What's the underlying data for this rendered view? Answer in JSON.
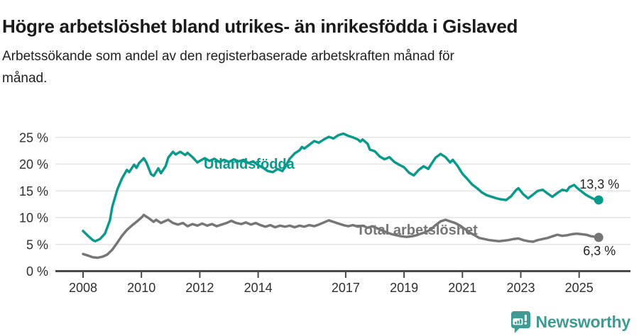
{
  "header": {
    "title": "Högre arbetslöshet bland utrikes- än inrikesfödda i Gislaved",
    "subtitle_line1": "Arbetssökande som andel av den registerbaserade arbetskraften månad för",
    "subtitle_line2": "månad."
  },
  "footer": {
    "brand": "Newsworthy",
    "logo_icon": "bar-chart-speech-bubble-icon"
  },
  "colors": {
    "series_utlandsfodda": "#0a9a8c",
    "series_total": "#767676",
    "grid": "#e4e4e4",
    "axis": "#4a4a4a",
    "title_text": "#1a1a1a",
    "tick_text": "#2e2e2e",
    "value_label_text": "#222222",
    "brand_teal": "#3e9a93"
  },
  "chart_data": {
    "type": "line",
    "title": "Högre arbetslöshet bland utrikes- än inrikesfödda i Gislaved",
    "subtitle": "Arbetssökande som andel av den registerbaserade arbetskraften månad för månad.",
    "grid": "horizontal-only",
    "legend_position": "inline-labels-on-lines",
    "x_axis": {
      "range": [
        2007.1,
        2026.8
      ],
      "ticks": [
        {
          "v": 2008,
          "label": "2008"
        },
        {
          "v": 2010,
          "label": "2010"
        },
        {
          "v": 2012,
          "label": "2012"
        },
        {
          "v": 2014,
          "label": "2014"
        },
        {
          "v": 2017,
          "label": "2017"
        },
        {
          "v": 2019,
          "label": "2019"
        },
        {
          "v": 2021,
          "label": "2021"
        },
        {
          "v": 2023,
          "label": "2023"
        },
        {
          "v": 2025,
          "label": "2025"
        }
      ]
    },
    "y_axis": {
      "unit": "%",
      "range": [
        0,
        27.5
      ],
      "ticks": [
        {
          "v": 0,
          "label": "0 %"
        },
        {
          "v": 5,
          "label": "5 %"
        },
        {
          "v": 10,
          "label": "10 %"
        },
        {
          "v": 15,
          "label": "15 %"
        },
        {
          "v": 20,
          "label": "20 %"
        },
        {
          "v": 25,
          "label": "25 %"
        }
      ]
    },
    "series": [
      {
        "name": "Utlandsfödda",
        "color": "#0a9a8c",
        "end_label": "13,3 %",
        "last_value": 13.3,
        "points": [
          [
            2008.0,
            7.5
          ],
          [
            2008.17,
            6.6
          ],
          [
            2008.33,
            5.8
          ],
          [
            2008.42,
            5.6
          ],
          [
            2008.58,
            6.0
          ],
          [
            2008.75,
            7.0
          ],
          [
            2008.92,
            9.5
          ],
          [
            2009.0,
            12.0
          ],
          [
            2009.17,
            15.2
          ],
          [
            2009.33,
            17.3
          ],
          [
            2009.5,
            18.9
          ],
          [
            2009.58,
            18.5
          ],
          [
            2009.75,
            19.9
          ],
          [
            2009.83,
            19.3
          ],
          [
            2009.92,
            20.2
          ],
          [
            2010.08,
            21.1
          ],
          [
            2010.17,
            20.3
          ],
          [
            2010.33,
            18.1
          ],
          [
            2010.42,
            17.8
          ],
          [
            2010.58,
            19.2
          ],
          [
            2010.67,
            18.3
          ],
          [
            2010.83,
            19.6
          ],
          [
            2010.92,
            21.2
          ],
          [
            2011.08,
            22.3
          ],
          [
            2011.17,
            21.8
          ],
          [
            2011.33,
            22.3
          ],
          [
            2011.5,
            21.7
          ],
          [
            2011.58,
            22.1
          ],
          [
            2011.75,
            21.3
          ],
          [
            2011.92,
            20.3
          ],
          [
            2012.0,
            20.6
          ],
          [
            2012.17,
            21.1
          ],
          [
            2012.33,
            20.6
          ],
          [
            2012.5,
            21.0
          ],
          [
            2012.67,
            20.4
          ],
          [
            2012.83,
            20.8
          ],
          [
            2013.0,
            20.4
          ],
          [
            2013.17,
            20.9
          ],
          [
            2013.33,
            20.5
          ],
          [
            2013.5,
            20.8
          ],
          [
            2013.67,
            20.2
          ],
          [
            2013.83,
            20.5
          ],
          [
            2014.0,
            19.8
          ],
          [
            2014.17,
            19.3
          ],
          [
            2014.33,
            18.7
          ],
          [
            2014.5,
            18.5
          ],
          [
            2014.67,
            19.1
          ],
          [
            2014.83,
            18.7
          ],
          [
            2014.92,
            19.4
          ],
          [
            2015.08,
            21.0
          ],
          [
            2015.25,
            22.0
          ],
          [
            2015.42,
            22.6
          ],
          [
            2015.5,
            23.2
          ],
          [
            2015.58,
            22.9
          ],
          [
            2015.75,
            23.6
          ],
          [
            2015.92,
            24.3
          ],
          [
            2016.08,
            24.0
          ],
          [
            2016.25,
            24.6
          ],
          [
            2016.42,
            25.1
          ],
          [
            2016.58,
            24.8
          ],
          [
            2016.75,
            25.4
          ],
          [
            2016.92,
            25.7
          ],
          [
            2017.08,
            25.3
          ],
          [
            2017.25,
            25.0
          ],
          [
            2017.42,
            24.6
          ],
          [
            2017.5,
            24.2
          ],
          [
            2017.58,
            24.6
          ],
          [
            2017.75,
            23.8
          ],
          [
            2017.83,
            22.7
          ],
          [
            2018.0,
            22.4
          ],
          [
            2018.17,
            21.4
          ],
          [
            2018.33,
            20.9
          ],
          [
            2018.5,
            21.3
          ],
          [
            2018.67,
            20.4
          ],
          [
            2018.83,
            19.9
          ],
          [
            2019.0,
            19.4
          ],
          [
            2019.17,
            18.4
          ],
          [
            2019.33,
            17.9
          ],
          [
            2019.5,
            18.9
          ],
          [
            2019.67,
            19.6
          ],
          [
            2019.83,
            19.1
          ],
          [
            2019.92,
            19.9
          ],
          [
            2020.08,
            21.2
          ],
          [
            2020.25,
            21.9
          ],
          [
            2020.42,
            21.3
          ],
          [
            2020.58,
            20.3
          ],
          [
            2020.67,
            20.8
          ],
          [
            2020.83,
            19.7
          ],
          [
            2021.0,
            18.2
          ],
          [
            2021.17,
            17.2
          ],
          [
            2021.33,
            16.2
          ],
          [
            2021.5,
            15.5
          ],
          [
            2021.67,
            14.7
          ],
          [
            2021.83,
            14.2
          ],
          [
            2022.0,
            13.9
          ],
          [
            2022.17,
            13.6
          ],
          [
            2022.33,
            13.4
          ],
          [
            2022.5,
            13.3
          ],
          [
            2022.67,
            14.0
          ],
          [
            2022.83,
            15.1
          ],
          [
            2022.92,
            15.5
          ],
          [
            2023.08,
            14.4
          ],
          [
            2023.25,
            13.6
          ],
          [
            2023.42,
            14.3
          ],
          [
            2023.58,
            15.0
          ],
          [
            2023.75,
            15.2
          ],
          [
            2023.92,
            14.5
          ],
          [
            2024.08,
            13.9
          ],
          [
            2024.25,
            14.6
          ],
          [
            2024.42,
            15.2
          ],
          [
            2024.58,
            15.0
          ],
          [
            2024.67,
            15.7
          ],
          [
            2024.83,
            16.1
          ],
          [
            2024.92,
            15.6
          ],
          [
            2025.08,
            14.9
          ],
          [
            2025.25,
            14.2
          ],
          [
            2025.42,
            13.7
          ],
          [
            2025.58,
            13.3
          ],
          [
            2025.67,
            13.3
          ]
        ]
      },
      {
        "name": "Total arbetslöshet",
        "color": "#767676",
        "end_label": "6,3 %",
        "last_value": 6.3,
        "points": [
          [
            2008.0,
            3.2
          ],
          [
            2008.17,
            2.9
          ],
          [
            2008.33,
            2.6
          ],
          [
            2008.5,
            2.5
          ],
          [
            2008.67,
            2.7
          ],
          [
            2008.83,
            3.1
          ],
          [
            2009.0,
            4.0
          ],
          [
            2009.17,
            5.3
          ],
          [
            2009.33,
            6.6
          ],
          [
            2009.5,
            7.7
          ],
          [
            2009.67,
            8.5
          ],
          [
            2009.83,
            9.2
          ],
          [
            2010.0,
            10.0
          ],
          [
            2010.08,
            10.5
          ],
          [
            2010.25,
            9.9
          ],
          [
            2010.42,
            9.2
          ],
          [
            2010.5,
            9.6
          ],
          [
            2010.67,
            9.0
          ],
          [
            2010.83,
            9.4
          ],
          [
            2010.92,
            9.6
          ],
          [
            2011.08,
            9.0
          ],
          [
            2011.25,
            8.7
          ],
          [
            2011.42,
            9.0
          ],
          [
            2011.58,
            8.4
          ],
          [
            2011.75,
            8.8
          ],
          [
            2011.92,
            8.5
          ],
          [
            2012.08,
            8.9
          ],
          [
            2012.25,
            8.5
          ],
          [
            2012.42,
            8.8
          ],
          [
            2012.58,
            8.4
          ],
          [
            2012.75,
            8.7
          ],
          [
            2012.92,
            9.0
          ],
          [
            2013.08,
            9.4
          ],
          [
            2013.25,
            9.0
          ],
          [
            2013.42,
            8.8
          ],
          [
            2013.58,
            9.1
          ],
          [
            2013.75,
            8.7
          ],
          [
            2013.92,
            9.0
          ],
          [
            2014.08,
            8.6
          ],
          [
            2014.25,
            8.3
          ],
          [
            2014.42,
            8.6
          ],
          [
            2014.58,
            8.2
          ],
          [
            2014.75,
            8.5
          ],
          [
            2014.92,
            8.3
          ],
          [
            2015.08,
            8.5
          ],
          [
            2015.25,
            8.2
          ],
          [
            2015.42,
            8.5
          ],
          [
            2015.58,
            8.3
          ],
          [
            2015.75,
            8.6
          ],
          [
            2015.92,
            8.4
          ],
          [
            2016.08,
            8.7
          ],
          [
            2016.25,
            9.1
          ],
          [
            2016.42,
            9.5
          ],
          [
            2016.58,
            9.2
          ],
          [
            2016.75,
            8.9
          ],
          [
            2016.92,
            8.6
          ],
          [
            2017.08,
            8.4
          ],
          [
            2017.25,
            8.6
          ],
          [
            2017.42,
            8.3
          ],
          [
            2017.58,
            8.5
          ],
          [
            2017.75,
            8.1
          ],
          [
            2017.92,
            8.4
          ],
          [
            2018.08,
            8.0
          ],
          [
            2018.25,
            7.6
          ],
          [
            2018.42,
            7.2
          ],
          [
            2018.58,
            6.9
          ],
          [
            2018.75,
            6.7
          ],
          [
            2018.92,
            6.5
          ],
          [
            2019.08,
            6.4
          ],
          [
            2019.25,
            6.5
          ],
          [
            2019.42,
            6.7
          ],
          [
            2019.58,
            7.0
          ],
          [
            2019.75,
            7.3
          ],
          [
            2019.92,
            7.8
          ],
          [
            2020.08,
            8.6
          ],
          [
            2020.25,
            9.3
          ],
          [
            2020.42,
            9.6
          ],
          [
            2020.58,
            9.3
          ],
          [
            2020.75,
            9.0
          ],
          [
            2020.92,
            8.5
          ],
          [
            2021.08,
            7.9
          ],
          [
            2021.25,
            7.2
          ],
          [
            2021.42,
            6.7
          ],
          [
            2021.58,
            6.2
          ],
          [
            2021.75,
            6.0
          ],
          [
            2021.92,
            5.8
          ],
          [
            2022.08,
            5.7
          ],
          [
            2022.25,
            5.6
          ],
          [
            2022.42,
            5.7
          ],
          [
            2022.58,
            5.8
          ],
          [
            2022.75,
            6.0
          ],
          [
            2022.92,
            6.1
          ],
          [
            2023.08,
            5.8
          ],
          [
            2023.25,
            5.6
          ],
          [
            2023.42,
            5.5
          ],
          [
            2023.58,
            5.8
          ],
          [
            2023.75,
            6.0
          ],
          [
            2023.92,
            6.2
          ],
          [
            2024.08,
            6.5
          ],
          [
            2024.25,
            6.8
          ],
          [
            2024.42,
            6.6
          ],
          [
            2024.58,
            6.7
          ],
          [
            2024.75,
            6.9
          ],
          [
            2024.92,
            7.0
          ],
          [
            2025.08,
            6.9
          ],
          [
            2025.25,
            6.8
          ],
          [
            2025.42,
            6.5
          ],
          [
            2025.58,
            6.4
          ],
          [
            2025.67,
            6.3
          ]
        ]
      }
    ]
  }
}
